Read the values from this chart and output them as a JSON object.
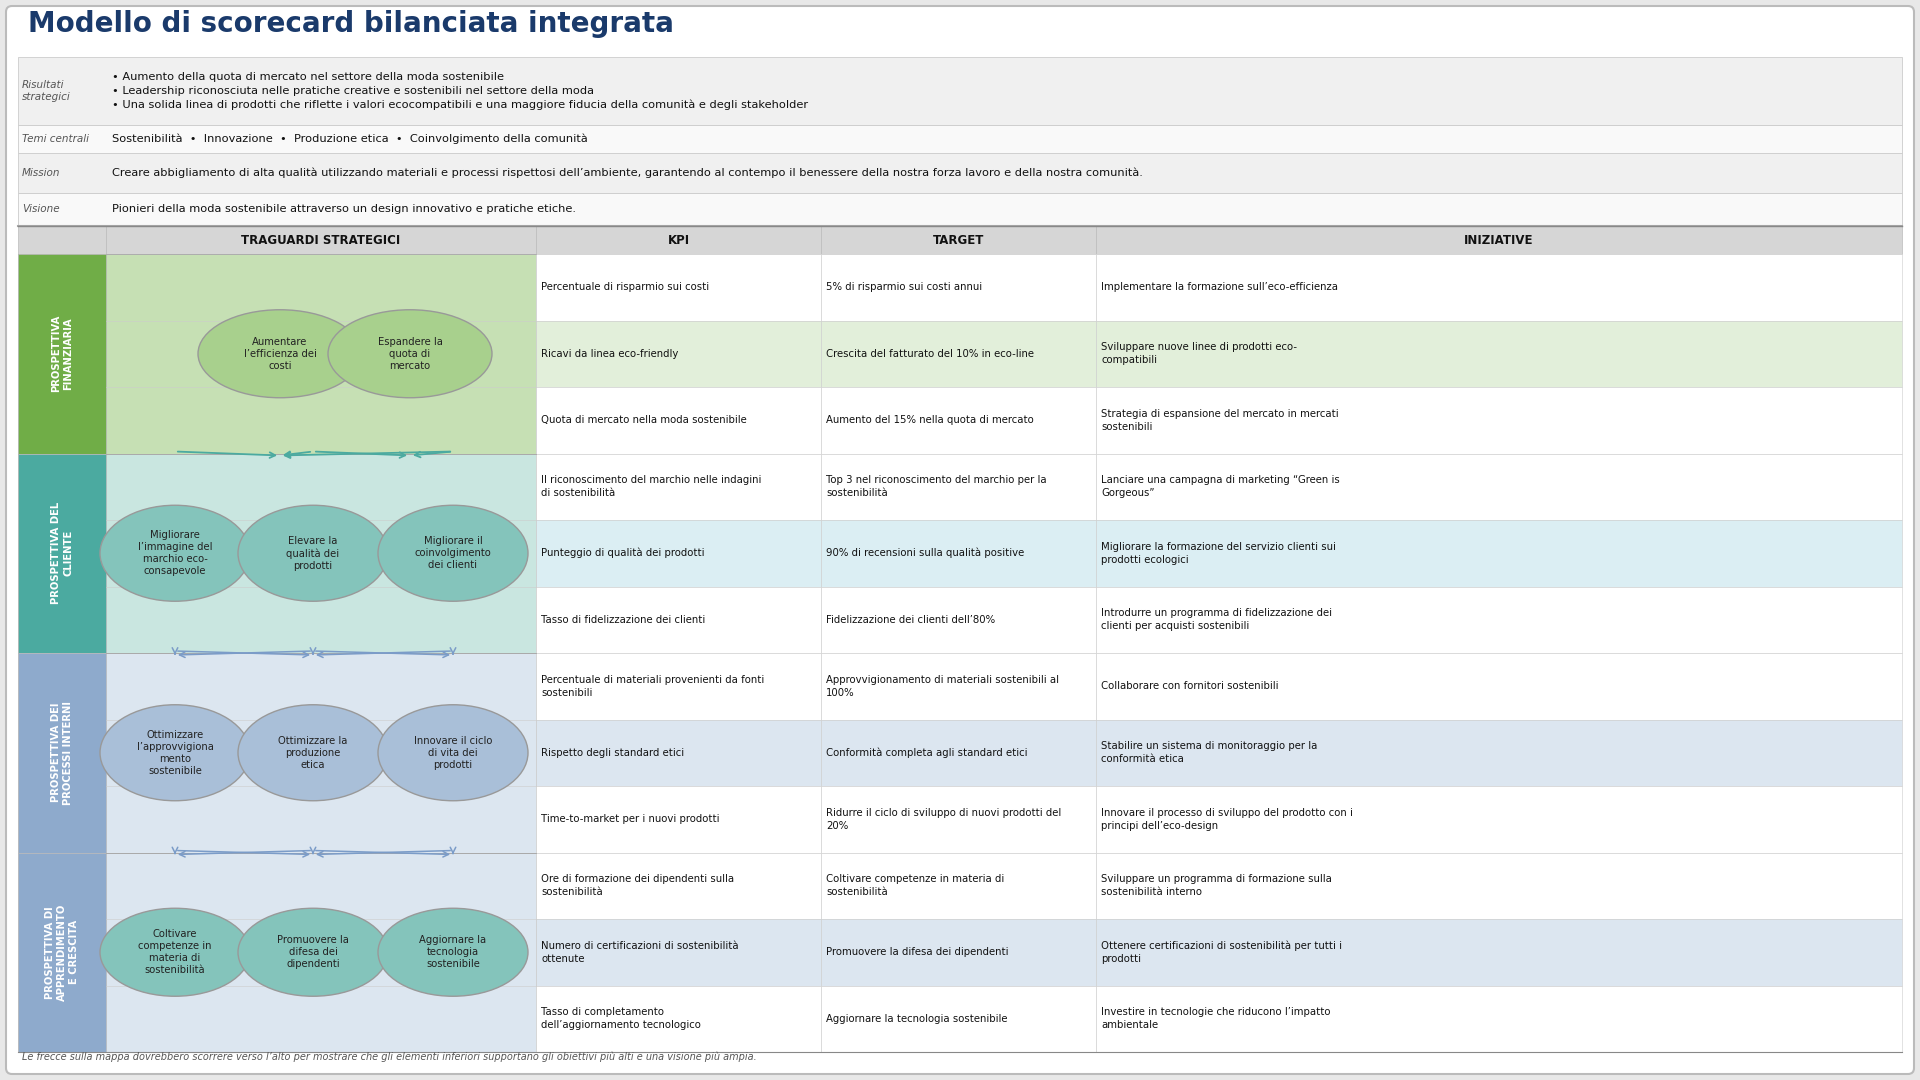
{
  "title": "Modello di scorecard bilanciata integrata",
  "title_color": "#1a3a6b",
  "bg_color": "#ffffff",
  "border_color": "#cccccc",
  "header_rows": [
    {
      "label": "Visione",
      "content": "Pionieri della moda sostenibile attraverso un design innovativo e pratiche etiche."
    },
    {
      "label": "Mission",
      "content": "Creare abbigliamento di alta qualità utilizzando materiali e processi rispettosi dell’ambiente, garantendo al contempo il benessere della nostra forza lavoro e della nostra comunità."
    },
    {
      "label": "Temi centrali",
      "content": "Sostenibilità  •  Innovazione  •  Produzione etica  •  Coinvolgimento della comunità"
    },
    {
      "label": "Risultati\nstrategici",
      "content": "• Aumento della quota di mercato nel settore della moda sostenibile\n• Leadership riconosciuta nelle pratiche creative e sostenibili nel settore della moda\n• Una solida linea di prodotti che riflette i valori ecocompatibili e una maggiore fiducia della comunità e degli stakeholder"
    }
  ],
  "perspectives": [
    {
      "label": "PROSPETTIVA\nFINANZIARIA",
      "label_bg": "#70ad47",
      "row_bg": "#c6e0b4",
      "hl_color": "#e2efda"
    },
    {
      "label": "PROSPETTIVA DEL\nCLIENTE",
      "label_bg": "#4baaa0",
      "row_bg": "#c9e6e0",
      "hl_color": "#dbeef3"
    },
    {
      "label": "PROSPETTIVA DEI\nPROCESSI INTERNI",
      "label_bg": "#8eaacc",
      "row_bg": "#dce6f0",
      "hl_color": "#dce6f0"
    },
    {
      "label": "PROSPETTIVA DI\nAPPRENDIMENTO\nE CRESCITA",
      "label_bg": "#8eaacc",
      "row_bg": "#dce6f0",
      "hl_color": "#dce6f0"
    }
  ],
  "map_nodes": {
    "financial": [
      {
        "text": "Aumentare\nl’efficienza dei\ncosti",
        "color": "#a8d08d"
      },
      {
        "text": "Espandere la\nquota di\nmercato",
        "color": "#a8d08d"
      }
    ],
    "client": [
      {
        "text": "Migliorare\nl’immagine del\nmarchio eco-\nconsapevole",
        "color": "#84c4bb"
      },
      {
        "text": "Elevare la\nqualità dei\nprodotti",
        "color": "#84c4bb"
      },
      {
        "text": "Migliorare il\ncoinvolgimento\ndei clienti",
        "color": "#84c4bb"
      }
    ],
    "internal": [
      {
        "text": "Ottimizzare\nl’approvvigiona\nmento\nsostenibile",
        "color": "#a9bfd8"
      },
      {
        "text": "Ottimizzare la\nproduzione\netica",
        "color": "#a9bfd8"
      },
      {
        "text": "Innovare il ciclo\ndi vita dei\nprodotti",
        "color": "#a9bfd8"
      }
    ],
    "learning": [
      {
        "text": "Coltivare\ncompetenze in\nmateria di\nsostenibilità",
        "color": "#84c4bb"
      },
      {
        "text": "Promuovere la\ndifesa dei\ndipendenti",
        "color": "#84c4bb"
      },
      {
        "text": "Aggiornare la\ntecnologia\nsostenibile",
        "color": "#84c4bb"
      }
    ]
  },
  "table_rows": [
    {
      "p": 0,
      "kpi": "Percentuale di risparmio sui costi",
      "target": "5% di risparmio sui costi annui",
      "initiative": "Implementare la formazione sull’eco-efficienza",
      "hl": false
    },
    {
      "p": 0,
      "kpi": "Ricavi da linea eco-friendly",
      "target": "Crescita del fatturato del 10% in eco-line",
      "initiative": "Sviluppare nuove linee di prodotti eco-\ncompatibili",
      "hl": true
    },
    {
      "p": 0,
      "kpi": "Quota di mercato nella moda sostenibile",
      "target": "Aumento del 15% nella quota di mercato",
      "initiative": "Strategia di espansione del mercato in mercati\nsostenibili",
      "hl": false
    },
    {
      "p": 1,
      "kpi": "Il riconoscimento del marchio nelle indagini\ndi sostenibilità",
      "target": "Top 3 nel riconoscimento del marchio per la\nsostenibilità",
      "initiative": "Lanciare una campagna di marketing “Green is\nGorgeous”",
      "hl": false
    },
    {
      "p": 1,
      "kpi": "Punteggio di qualità dei prodotti",
      "target": "90% di recensioni sulla qualità positive",
      "initiative": "Migliorare la formazione del servizio clienti sui\nprodotti ecologici",
      "hl": true
    },
    {
      "p": 1,
      "kpi": "Tasso di fidelizzazione dei clienti",
      "target": "Fidelizzazione dei clienti dell’80%",
      "initiative": "Introdurre un programma di fidelizzazione dei\nclienti per acquisti sostenibili",
      "hl": false
    },
    {
      "p": 2,
      "kpi": "Percentuale di materiali provenienti da fonti\nsostenibili",
      "target": "Approvvigionamento di materiali sostenibili al\n100%",
      "initiative": "Collaborare con fornitori sostenibili",
      "hl": false
    },
    {
      "p": 2,
      "kpi": "Rispetto degli standard etici",
      "target": "Conformità completa agli standard etici",
      "initiative": "Stabilire un sistema di monitoraggio per la\nconformità etica",
      "hl": true
    },
    {
      "p": 2,
      "kpi": "Time-to-market per i nuovi prodotti",
      "target": "Ridurre il ciclo di sviluppo di nuovi prodotti del\n20%",
      "initiative": "Innovare il processo di sviluppo del prodotto con i\nprincipi dell’eco-design",
      "hl": false
    },
    {
      "p": 3,
      "kpi": "Ore di formazione dei dipendenti sulla\nsostenibilità",
      "target": "Coltivare competenze in materia di\nsostenibilità",
      "initiative": "Sviluppare un programma di formazione sulla\nsostenibilità interno",
      "hl": false
    },
    {
      "p": 3,
      "kpi": "Numero di certificazioni di sostenibilità\nottenute",
      "target": "Promuovere la difesa dei dipendenti",
      "initiative": "Ottenere certificazioni di sostenibilità per tutti i\nprodotti",
      "hl": true
    },
    {
      "p": 3,
      "kpi": "Tasso di completamento\ndell’aggiornamento tecnologico",
      "target": "Aggiornare la tecnologia sostenibile",
      "initiative": "Investire in tecnologie che riducono l’impatto\nambientale",
      "hl": false
    }
  ],
  "footer": "Le frecce sulla mappa dovrebbero scorrere verso l’alto per mostrare che gli elementi inferiori supportano gli obiettivi più alti e una visione più ampia."
}
